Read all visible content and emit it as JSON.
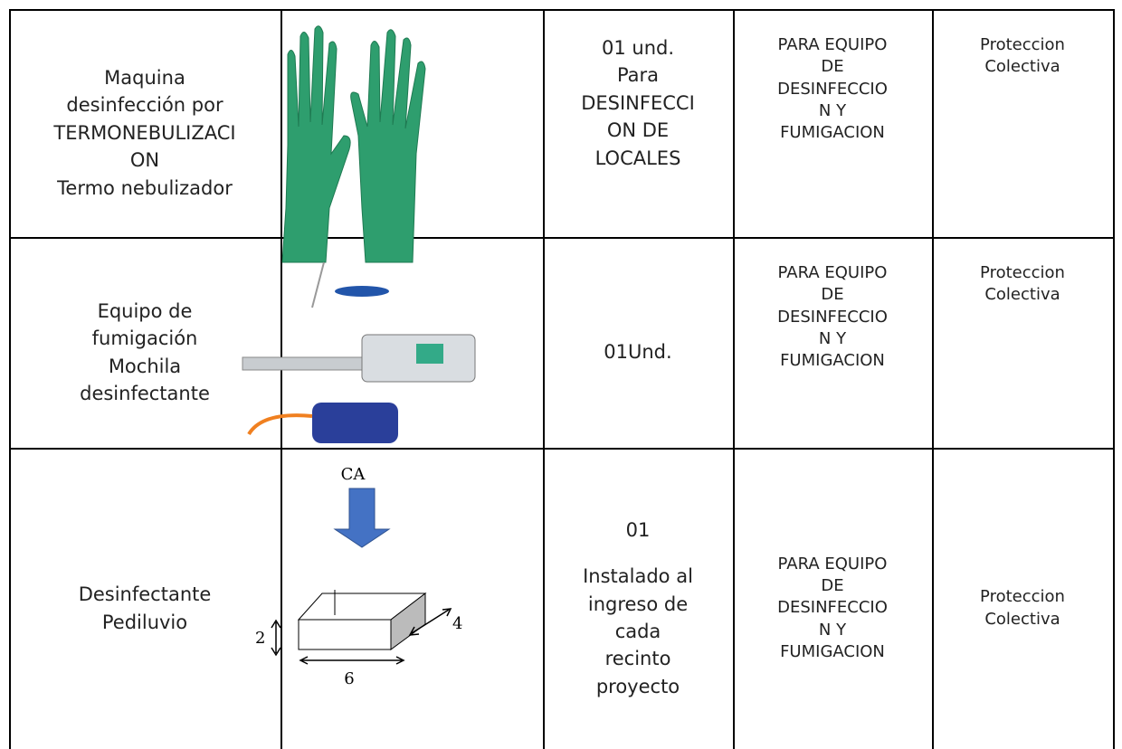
{
  "table": {
    "rows": [
      {
        "item": [
          "Maquina",
          "desinfección por",
          "TERMONEBULIZACI",
          "ON",
          "Termo nebulizador"
        ],
        "quantity": [
          "01 und.",
          "Para",
          "DESINFECCI",
          "ON DE",
          "LOCALES"
        ],
        "use": [
          "PARA EQUIPO",
          "DE",
          "DESINFECCIO",
          "N Y",
          "FUMIGACION"
        ],
        "type": [
          "Proteccion",
          "Colectiva"
        ]
      },
      {
        "item": [
          "Equipo de",
          "fumigación",
          "Mochila",
          "desinfectante"
        ],
        "quantity": [
          "01Und."
        ],
        "use": [
          "PARA EQUIPO",
          "DE",
          "DESINFECCIO",
          "N Y",
          "FUMIGACION"
        ],
        "type": [
          "Proteccion",
          "Colectiva"
        ]
      },
      {
        "item": [
          "Desinfectante",
          "Pediluvio"
        ],
        "quantity": [
          "01",
          "",
          "Instalado al",
          "ingreso de",
          "cada",
          "recinto",
          "proyecto"
        ],
        "use": [
          "PARA EQUIPO",
          "DE",
          "DESINFECCIO",
          "N Y",
          "FUMIGACION"
        ],
        "type": [
          "Proteccion",
          "Colectiva"
        ]
      }
    ]
  },
  "diagram": {
    "top_label": "CA",
    "height_label": "2",
    "depth_label": "4",
    "width_label": "6"
  }
}
